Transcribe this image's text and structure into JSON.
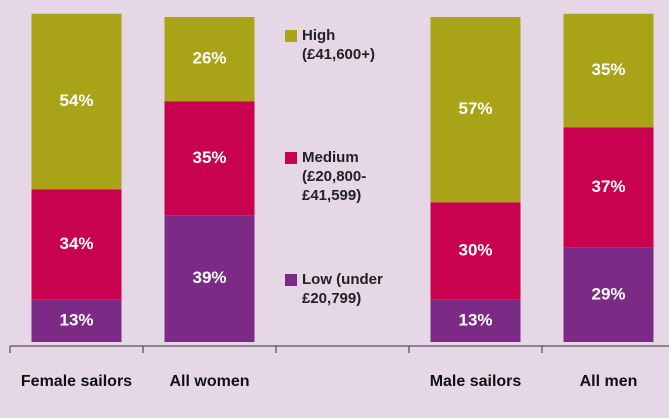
{
  "chart_data": {
    "type": "stacked_bar",
    "categories": [
      "Female sailors",
      "All women",
      null,
      "Male sailors",
      "All men"
    ],
    "series": [
      {
        "name": "Low (under £20,799)",
        "color": "#7b2a86",
        "values": [
          13,
          39,
          null,
          13,
          29
        ],
        "value_labels": [
          "13%",
          "39%",
          null,
          "13%",
          "29%"
        ]
      },
      {
        "name": "Medium (£20,800-£41,599)",
        "color": "#c8024f",
        "values": [
          34,
          35,
          null,
          30,
          37
        ],
        "value_labels": [
          "34%",
          "35%",
          null,
          "30%",
          "37%"
        ]
      },
      {
        "name": "High (£41,600+)",
        "color": "#a9a318",
        "values": [
          54,
          26,
          null,
          57,
          35
        ],
        "value_labels": [
          "54%",
          "26%",
          null,
          "57%",
          "35%"
        ]
      }
    ]
  }
}
